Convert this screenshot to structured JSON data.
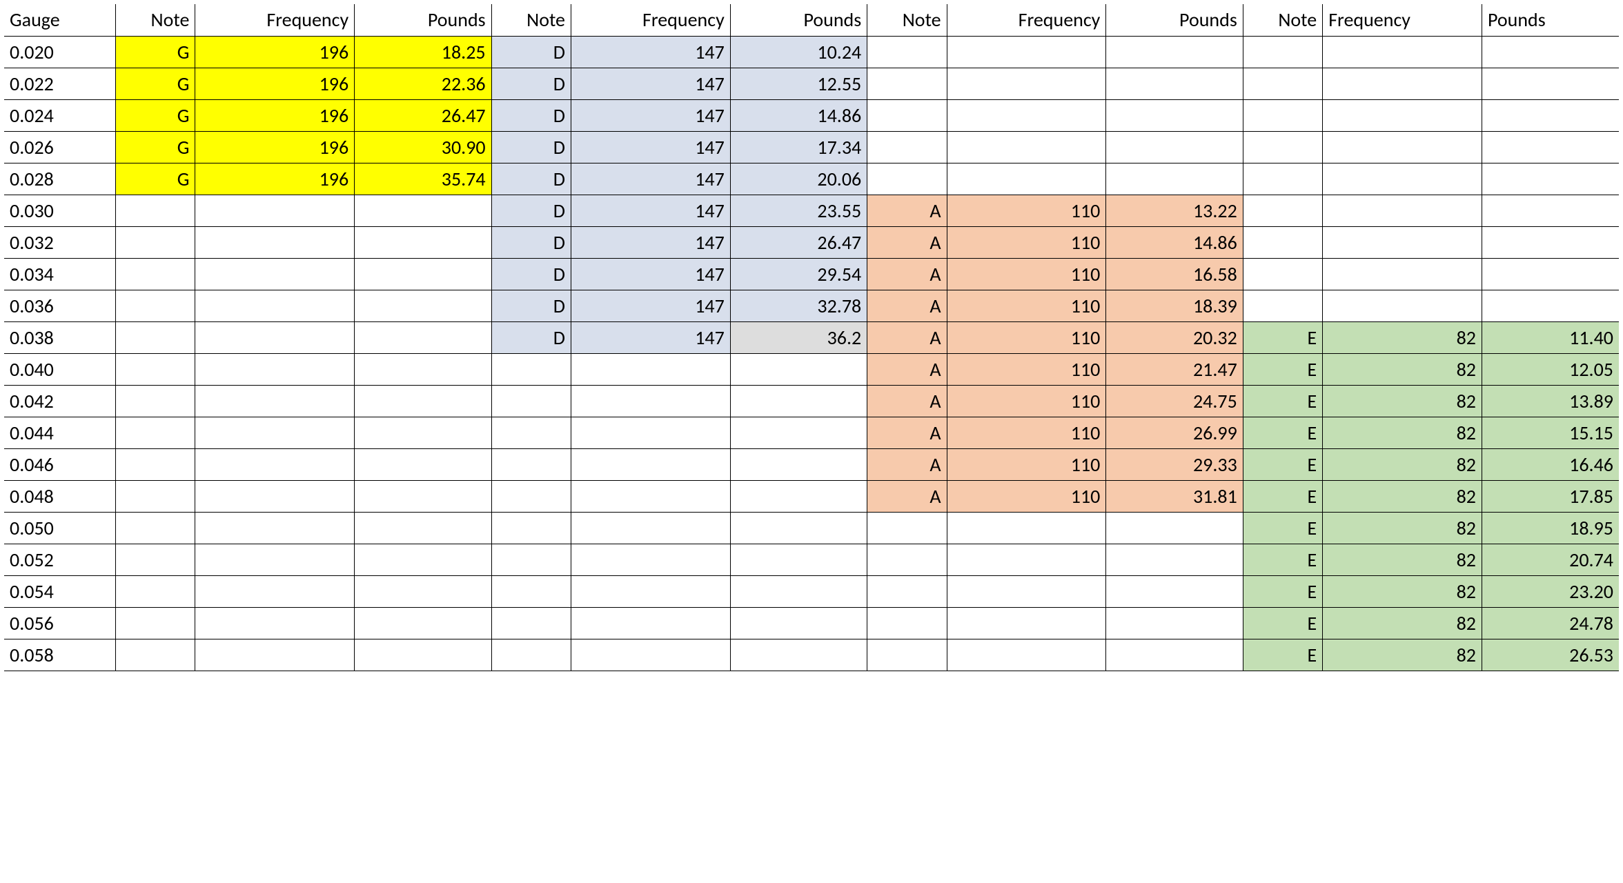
{
  "table": {
    "type": "table",
    "background_color": "#ffffff",
    "border_color": "#000000",
    "font_family": "Calibri",
    "header_fontsize": 28,
    "cell_fontsize": 28,
    "colors": {
      "yellow": "#ffff00",
      "blue": "#d8dfec",
      "orange": "#f7caac",
      "green": "#c3dfb4",
      "grey": "#dddddd",
      "white": "#ffffff"
    },
    "columns": [
      {
        "key": "gauge",
        "label": "Gauge",
        "align": "left"
      },
      {
        "key": "n1",
        "label": "Note",
        "align": "right"
      },
      {
        "key": "f1",
        "label": "Frequency",
        "align": "right"
      },
      {
        "key": "p1",
        "label": "Pounds",
        "align": "right"
      },
      {
        "key": "n2",
        "label": "Note",
        "align": "right"
      },
      {
        "key": "f2",
        "label": "Frequency",
        "align": "right"
      },
      {
        "key": "p2",
        "label": "Pounds",
        "align": "right"
      },
      {
        "key": "n3",
        "label": "Note",
        "align": "right"
      },
      {
        "key": "f3",
        "label": "Frequency",
        "align": "right"
      },
      {
        "key": "p3",
        "label": "Pounds",
        "align": "right"
      },
      {
        "key": "n4",
        "label": "Note",
        "align": "right"
      },
      {
        "key": "f4",
        "label": "Frequency",
        "align": "left"
      },
      {
        "key": "p4",
        "label": "Pounds",
        "align": "left"
      }
    ],
    "rows": [
      {
        "gauge": "0.020",
        "c": [
          {
            "v": "G",
            "bg": "yellow"
          },
          {
            "v": "196",
            "bg": "yellow"
          },
          {
            "v": "18.25",
            "bg": "yellow"
          },
          {
            "v": "D",
            "bg": "blue"
          },
          {
            "v": "147",
            "bg": "blue"
          },
          {
            "v": "10.24",
            "bg": "blue"
          },
          {
            "v": ""
          },
          {
            "v": ""
          },
          {
            "v": ""
          },
          {
            "v": ""
          },
          {
            "v": ""
          },
          {
            "v": ""
          }
        ]
      },
      {
        "gauge": "0.022",
        "c": [
          {
            "v": "G",
            "bg": "yellow"
          },
          {
            "v": "196",
            "bg": "yellow"
          },
          {
            "v": "22.36",
            "bg": "yellow"
          },
          {
            "v": "D",
            "bg": "blue"
          },
          {
            "v": "147",
            "bg": "blue"
          },
          {
            "v": "12.55",
            "bg": "blue"
          },
          {
            "v": ""
          },
          {
            "v": ""
          },
          {
            "v": ""
          },
          {
            "v": ""
          },
          {
            "v": ""
          },
          {
            "v": ""
          }
        ]
      },
      {
        "gauge": "0.024",
        "c": [
          {
            "v": "G",
            "bg": "yellow"
          },
          {
            "v": "196",
            "bg": "yellow"
          },
          {
            "v": "26.47",
            "bg": "yellow"
          },
          {
            "v": "D",
            "bg": "blue"
          },
          {
            "v": "147",
            "bg": "blue"
          },
          {
            "v": "14.86",
            "bg": "blue"
          },
          {
            "v": ""
          },
          {
            "v": ""
          },
          {
            "v": ""
          },
          {
            "v": ""
          },
          {
            "v": ""
          },
          {
            "v": ""
          }
        ]
      },
      {
        "gauge": "0.026",
        "c": [
          {
            "v": "G",
            "bg": "yellow"
          },
          {
            "v": "196",
            "bg": "yellow"
          },
          {
            "v": "30.90",
            "bg": "yellow"
          },
          {
            "v": "D",
            "bg": "blue"
          },
          {
            "v": "147",
            "bg": "blue"
          },
          {
            "v": "17.34",
            "bg": "blue"
          },
          {
            "v": ""
          },
          {
            "v": ""
          },
          {
            "v": ""
          },
          {
            "v": ""
          },
          {
            "v": ""
          },
          {
            "v": ""
          }
        ]
      },
      {
        "gauge": "0.028",
        "c": [
          {
            "v": "G",
            "bg": "yellow"
          },
          {
            "v": "196",
            "bg": "yellow"
          },
          {
            "v": "35.74",
            "bg": "yellow"
          },
          {
            "v": "D",
            "bg": "blue"
          },
          {
            "v": "147",
            "bg": "blue"
          },
          {
            "v": "20.06",
            "bg": "blue"
          },
          {
            "v": ""
          },
          {
            "v": ""
          },
          {
            "v": ""
          },
          {
            "v": ""
          },
          {
            "v": ""
          },
          {
            "v": ""
          }
        ]
      },
      {
        "gauge": "0.030",
        "c": [
          {
            "v": ""
          },
          {
            "v": ""
          },
          {
            "v": ""
          },
          {
            "v": "D",
            "bg": "blue"
          },
          {
            "v": "147",
            "bg": "blue"
          },
          {
            "v": "23.55",
            "bg": "blue"
          },
          {
            "v": "A",
            "bg": "orange"
          },
          {
            "v": "110",
            "bg": "orange"
          },
          {
            "v": "13.22",
            "bg": "orange"
          },
          {
            "v": ""
          },
          {
            "v": ""
          },
          {
            "v": ""
          }
        ]
      },
      {
        "gauge": "0.032",
        "c": [
          {
            "v": ""
          },
          {
            "v": ""
          },
          {
            "v": ""
          },
          {
            "v": "D",
            "bg": "blue"
          },
          {
            "v": "147",
            "bg": "blue"
          },
          {
            "v": "26.47",
            "bg": "blue"
          },
          {
            "v": "A",
            "bg": "orange"
          },
          {
            "v": "110",
            "bg": "orange"
          },
          {
            "v": "14.86",
            "bg": "orange"
          },
          {
            "v": ""
          },
          {
            "v": ""
          },
          {
            "v": ""
          }
        ]
      },
      {
        "gauge": "0.034",
        "c": [
          {
            "v": ""
          },
          {
            "v": ""
          },
          {
            "v": ""
          },
          {
            "v": "D",
            "bg": "blue"
          },
          {
            "v": "147",
            "bg": "blue"
          },
          {
            "v": "29.54",
            "bg": "blue"
          },
          {
            "v": "A",
            "bg": "orange"
          },
          {
            "v": "110",
            "bg": "orange"
          },
          {
            "v": "16.58",
            "bg": "orange"
          },
          {
            "v": ""
          },
          {
            "v": ""
          },
          {
            "v": ""
          }
        ]
      },
      {
        "gauge": "0.036",
        "c": [
          {
            "v": ""
          },
          {
            "v": ""
          },
          {
            "v": ""
          },
          {
            "v": "D",
            "bg": "blue"
          },
          {
            "v": "147",
            "bg": "blue"
          },
          {
            "v": "32.78",
            "bg": "blue"
          },
          {
            "v": "A",
            "bg": "orange"
          },
          {
            "v": "110",
            "bg": "orange"
          },
          {
            "v": "18.39",
            "bg": "orange"
          },
          {
            "v": ""
          },
          {
            "v": ""
          },
          {
            "v": ""
          }
        ]
      },
      {
        "gauge": "0.038",
        "c": [
          {
            "v": ""
          },
          {
            "v": ""
          },
          {
            "v": ""
          },
          {
            "v": "D",
            "bg": "blue"
          },
          {
            "v": "147",
            "bg": "blue"
          },
          {
            "v": "36.2",
            "bg": "grey"
          },
          {
            "v": "A",
            "bg": "orange"
          },
          {
            "v": "110",
            "bg": "orange"
          },
          {
            "v": "20.32",
            "bg": "orange"
          },
          {
            "v": "E",
            "bg": "green"
          },
          {
            "v": "82",
            "bg": "green"
          },
          {
            "v": "11.40",
            "bg": "green"
          }
        ]
      },
      {
        "gauge": "0.040",
        "c": [
          {
            "v": ""
          },
          {
            "v": ""
          },
          {
            "v": ""
          },
          {
            "v": ""
          },
          {
            "v": ""
          },
          {
            "v": ""
          },
          {
            "v": "A",
            "bg": "orange"
          },
          {
            "v": "110",
            "bg": "orange"
          },
          {
            "v": "21.47",
            "bg": "orange"
          },
          {
            "v": "E",
            "bg": "green"
          },
          {
            "v": "82",
            "bg": "green"
          },
          {
            "v": "12.05",
            "bg": "green"
          }
        ]
      },
      {
        "gauge": "0.042",
        "c": [
          {
            "v": ""
          },
          {
            "v": ""
          },
          {
            "v": ""
          },
          {
            "v": ""
          },
          {
            "v": ""
          },
          {
            "v": ""
          },
          {
            "v": "A",
            "bg": "orange"
          },
          {
            "v": "110",
            "bg": "orange"
          },
          {
            "v": "24.75",
            "bg": "orange"
          },
          {
            "v": "E",
            "bg": "green"
          },
          {
            "v": "82",
            "bg": "green"
          },
          {
            "v": "13.89",
            "bg": "green"
          }
        ]
      },
      {
        "gauge": "0.044",
        "c": [
          {
            "v": ""
          },
          {
            "v": ""
          },
          {
            "v": ""
          },
          {
            "v": ""
          },
          {
            "v": ""
          },
          {
            "v": ""
          },
          {
            "v": "A",
            "bg": "orange"
          },
          {
            "v": "110",
            "bg": "orange"
          },
          {
            "v": "26.99",
            "bg": "orange"
          },
          {
            "v": "E",
            "bg": "green"
          },
          {
            "v": "82",
            "bg": "green"
          },
          {
            "v": "15.15",
            "bg": "green"
          }
        ]
      },
      {
        "gauge": "0.046",
        "c": [
          {
            "v": ""
          },
          {
            "v": ""
          },
          {
            "v": ""
          },
          {
            "v": ""
          },
          {
            "v": ""
          },
          {
            "v": ""
          },
          {
            "v": "A",
            "bg": "orange"
          },
          {
            "v": "110",
            "bg": "orange"
          },
          {
            "v": "29.33",
            "bg": "orange"
          },
          {
            "v": "E",
            "bg": "green"
          },
          {
            "v": "82",
            "bg": "green"
          },
          {
            "v": "16.46",
            "bg": "green"
          }
        ]
      },
      {
        "gauge": "0.048",
        "c": [
          {
            "v": ""
          },
          {
            "v": ""
          },
          {
            "v": ""
          },
          {
            "v": ""
          },
          {
            "v": ""
          },
          {
            "v": ""
          },
          {
            "v": "A",
            "bg": "orange"
          },
          {
            "v": "110",
            "bg": "orange"
          },
          {
            "v": "31.81",
            "bg": "orange"
          },
          {
            "v": "E",
            "bg": "green"
          },
          {
            "v": "82",
            "bg": "green"
          },
          {
            "v": "17.85",
            "bg": "green"
          }
        ]
      },
      {
        "gauge": "0.050",
        "c": [
          {
            "v": ""
          },
          {
            "v": ""
          },
          {
            "v": ""
          },
          {
            "v": ""
          },
          {
            "v": ""
          },
          {
            "v": ""
          },
          {
            "v": ""
          },
          {
            "v": ""
          },
          {
            "v": ""
          },
          {
            "v": "E",
            "bg": "green"
          },
          {
            "v": "82",
            "bg": "green"
          },
          {
            "v": "18.95",
            "bg": "green"
          }
        ]
      },
      {
        "gauge": "0.052",
        "c": [
          {
            "v": ""
          },
          {
            "v": ""
          },
          {
            "v": ""
          },
          {
            "v": ""
          },
          {
            "v": ""
          },
          {
            "v": ""
          },
          {
            "v": ""
          },
          {
            "v": ""
          },
          {
            "v": ""
          },
          {
            "v": "E",
            "bg": "green"
          },
          {
            "v": "82",
            "bg": "green"
          },
          {
            "v": "20.74",
            "bg": "green"
          }
        ]
      },
      {
        "gauge": "0.054",
        "c": [
          {
            "v": ""
          },
          {
            "v": ""
          },
          {
            "v": ""
          },
          {
            "v": ""
          },
          {
            "v": ""
          },
          {
            "v": ""
          },
          {
            "v": ""
          },
          {
            "v": ""
          },
          {
            "v": ""
          },
          {
            "v": "E",
            "bg": "green"
          },
          {
            "v": "82",
            "bg": "green"
          },
          {
            "v": "23.20",
            "bg": "green"
          }
        ]
      },
      {
        "gauge": "0.056",
        "c": [
          {
            "v": ""
          },
          {
            "v": ""
          },
          {
            "v": ""
          },
          {
            "v": ""
          },
          {
            "v": ""
          },
          {
            "v": ""
          },
          {
            "v": ""
          },
          {
            "v": ""
          },
          {
            "v": ""
          },
          {
            "v": "E",
            "bg": "green"
          },
          {
            "v": "82",
            "bg": "green"
          },
          {
            "v": "24.78",
            "bg": "green"
          }
        ]
      },
      {
        "gauge": "0.058",
        "c": [
          {
            "v": ""
          },
          {
            "v": ""
          },
          {
            "v": ""
          },
          {
            "v": ""
          },
          {
            "v": ""
          },
          {
            "v": ""
          },
          {
            "v": ""
          },
          {
            "v": ""
          },
          {
            "v": ""
          },
          {
            "v": "E",
            "bg": "green"
          },
          {
            "v": "82",
            "bg": "green"
          },
          {
            "v": "26.53",
            "bg": "green"
          }
        ]
      }
    ]
  }
}
